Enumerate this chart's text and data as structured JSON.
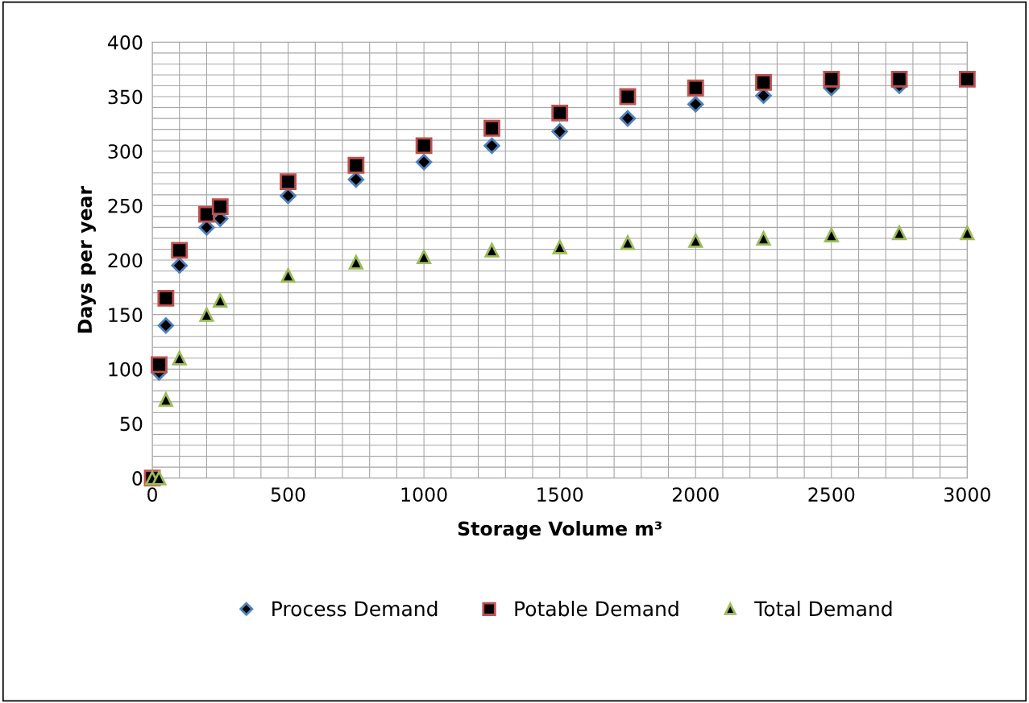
{
  "chart_data": {
    "type": "scatter",
    "xlabel": "Storage Volume m³",
    "ylabel": "Days per year",
    "x": [
      0,
      25,
      50,
      100,
      200,
      250,
      500,
      750,
      1000,
      1250,
      1500,
      1750,
      2000,
      2250,
      2500,
      2750,
      3000
    ],
    "series": [
      {
        "name": "Process Demand",
        "color": "#4f81bd",
        "marker": "diamond",
        "values": [
          null,
          97,
          140,
          195,
          230,
          238,
          259,
          274,
          290,
          305,
          318,
          330,
          343,
          351,
          358,
          360,
          null
        ]
      },
      {
        "name": "Potable Demand",
        "color": "#c0504d",
        "marker": "square",
        "values": [
          0,
          104,
          165,
          209,
          242,
          249,
          272,
          287,
          305,
          321,
          335,
          350,
          358,
          363,
          366,
          366,
          366
        ]
      },
      {
        "name": "Total Demand",
        "color": "#9bbb59",
        "marker": "triangle",
        "values": [
          0,
          0,
          72,
          110,
          150,
          163,
          186,
          198,
          203,
          209,
          212,
          216,
          218,
          220,
          223,
          225,
          225
        ]
      }
    ],
    "xlim": [
      0,
      3000
    ],
    "xticks": [
      0,
      500,
      1000,
      1500,
      2000,
      2500,
      3000
    ],
    "ylim": [
      0,
      400
    ],
    "yticks": [
      0,
      50,
      100,
      150,
      200,
      250,
      300,
      350,
      400
    ],
    "grid": true,
    "legend": "bottom"
  }
}
